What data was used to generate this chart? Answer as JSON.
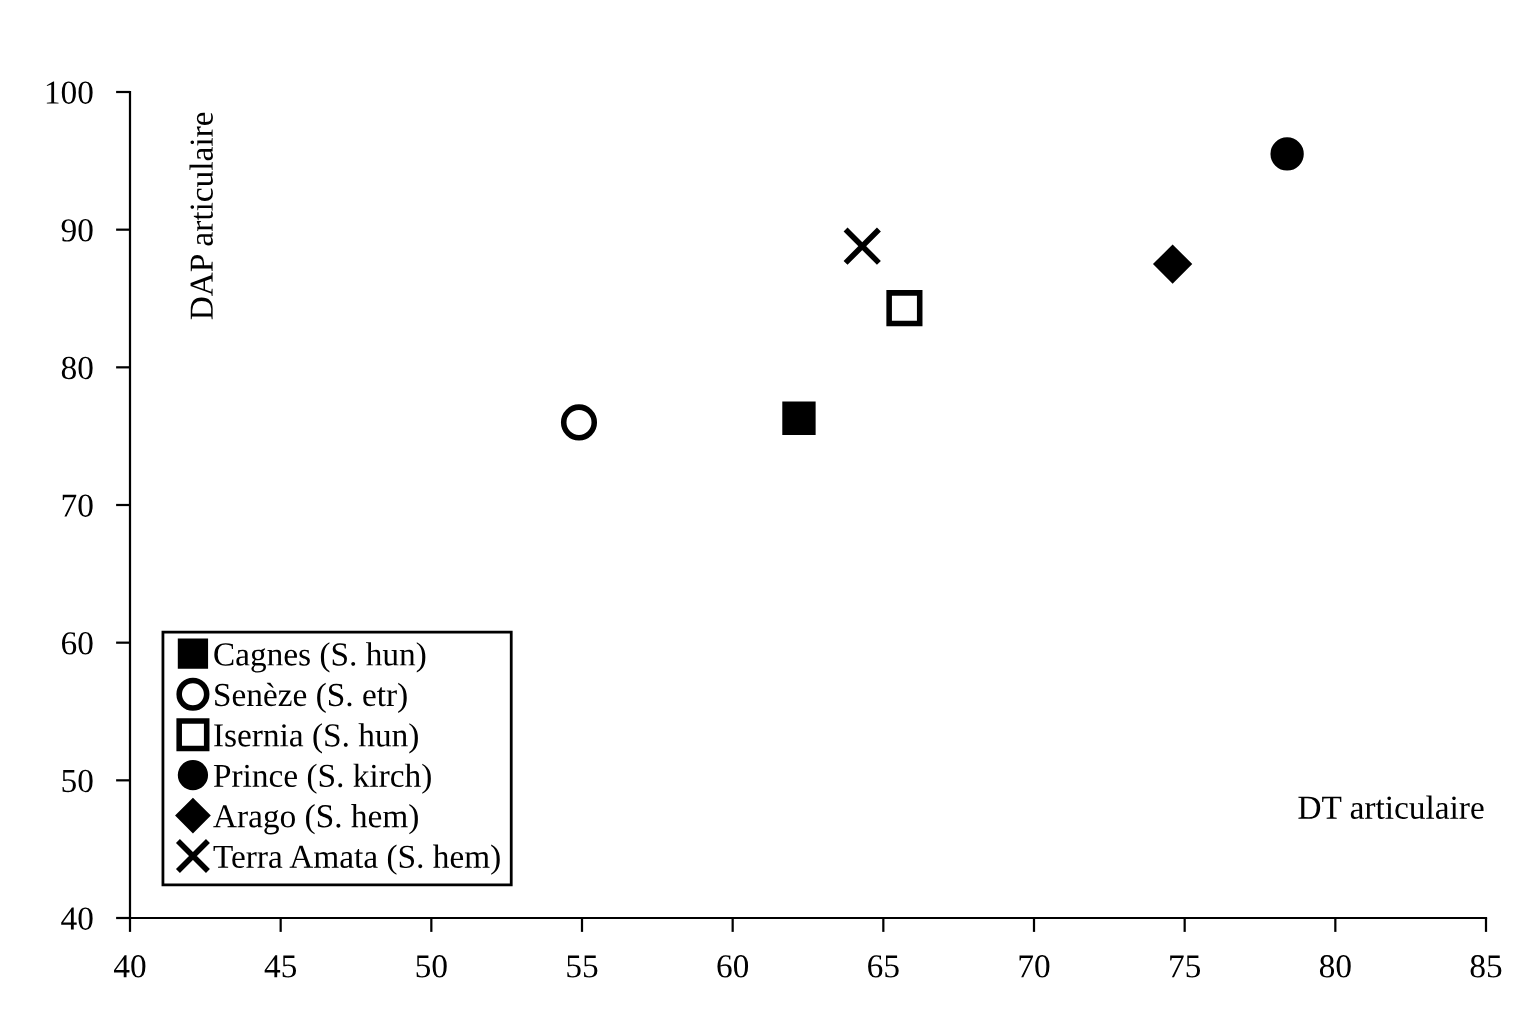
{
  "chart_data": {
    "type": "scatter",
    "xlabel": "DT articulaire",
    "ylabel": "DAP articulaire",
    "xlim": [
      40,
      85
    ],
    "xticks": [
      40,
      45,
      50,
      55,
      60,
      65,
      70,
      75,
      80,
      85
    ],
    "ylim": [
      40,
      100
    ],
    "yticks": [
      40,
      50,
      60,
      70,
      80,
      90,
      100
    ],
    "grid": false,
    "legend": "bottom left",
    "series": [
      {
        "name": "Cagnes (S. hun)",
        "color": "#000000",
        "marker": "square",
        "x": [
          62.2
        ],
        "values": [
          76.3
        ]
      },
      {
        "name": "Senèze (S. etr)",
        "color": "#000000",
        "colors": [
          "#ffffff"
        ],
        "marker": "circle",
        "x": [
          54.9
        ],
        "values": [
          76.0
        ]
      },
      {
        "name": "Isernia (S. hun)",
        "color": "#000000",
        "colors": [
          "#ffffff"
        ],
        "marker": "square",
        "x": [
          65.7
        ],
        "values": [
          84.3
        ]
      },
      {
        "name": "Prince (S. kirch)",
        "color": "#000000",
        "marker": "circle",
        "x": [
          78.4
        ],
        "values": [
          95.5
        ]
      },
      {
        "name": "Arago (S. hem)",
        "color": "#000000",
        "marker": "diamond",
        "x": [
          74.6
        ],
        "values": [
          87.5
        ]
      },
      {
        "name": "Terra Amata (S. hem)",
        "color": "#000000",
        "marker": "cross",
        "x": [
          64.3
        ],
        "values": [
          88.8
        ]
      }
    ]
  }
}
